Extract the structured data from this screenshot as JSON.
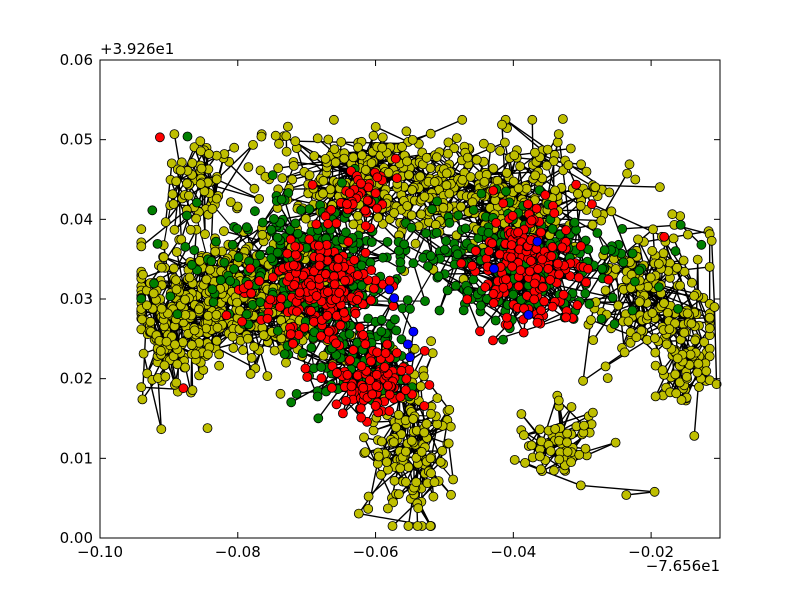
{
  "chart_data": {
    "type": "scatter",
    "title": "",
    "xlabel": "",
    "ylabel": "",
    "xlim": [
      -0.1,
      -0.01
    ],
    "ylim": [
      0.0,
      0.06
    ],
    "x_ticks": [
      -0.1,
      -0.08,
      -0.06,
      -0.04,
      -0.02
    ],
    "x_tick_labels": [
      "−0.10",
      "−0.08",
      "−0.06",
      "−0.04",
      "−0.02"
    ],
    "y_ticks": [
      0.0,
      0.01,
      0.02,
      0.03,
      0.04,
      0.05,
      0.06
    ],
    "y_tick_labels": [
      "0.00",
      "0.01",
      "0.02",
      "0.03",
      "0.04",
      "0.05",
      "0.06"
    ],
    "x_offset_label": "−7.656e1",
    "y_offset_label": "+3.926e1",
    "grid": false,
    "legend": false,
    "edge_color": "#000000",
    "series": [
      {
        "color": "#bfbf00",
        "clusters": [
          {
            "cx": -0.08,
            "cy": 0.03,
            "sx": 0.01,
            "sy": 0.006,
            "n": 420
          },
          {
            "cx": -0.06,
            "cy": 0.045,
            "sx": 0.012,
            "sy": 0.004,
            "n": 260
          },
          {
            "cx": -0.04,
            "cy": 0.043,
            "sx": 0.01,
            "sy": 0.005,
            "n": 240
          },
          {
            "cx": -0.02,
            "cy": 0.03,
            "sx": 0.006,
            "sy": 0.006,
            "n": 150
          },
          {
            "cx": -0.055,
            "cy": 0.012,
            "sx": 0.004,
            "sy": 0.007,
            "n": 140
          },
          {
            "cx": -0.033,
            "cy": 0.012,
            "sx": 0.004,
            "sy": 0.003,
            "n": 60
          },
          {
            "cx": -0.09,
            "cy": 0.025,
            "sx": 0.003,
            "sy": 0.005,
            "n": 90
          },
          {
            "cx": -0.015,
            "cy": 0.022,
            "sx": 0.003,
            "sy": 0.004,
            "n": 70
          },
          {
            "cx": -0.085,
            "cy": 0.045,
            "sx": 0.004,
            "sy": 0.004,
            "n": 60
          }
        ],
        "sparse_points": [
          [
            -0.0892,
            0.0507
          ],
          [
            -0.0745,
            0.0505
          ],
          [
            -0.0328,
            0.0526
          ],
          [
            -0.0223,
            0.045
          ],
          [
            -0.0844,
            0.0138
          ],
          [
            -0.0105,
            0.0193
          ],
          [
            -0.0108,
            0.029
          ],
          [
            -0.0112,
            0.0373
          ],
          [
            -0.0236,
            0.0054
          ],
          [
            -0.0195,
            0.0058
          ],
          [
            -0.0302,
            0.0066
          ],
          [
            -0.0398,
            0.0098
          ],
          [
            -0.0539,
            0.0015
          ],
          [
            -0.0541,
            0.007
          ],
          [
            -0.087,
            0.0327
          ],
          [
            -0.0922,
            0.0307
          ]
        ]
      },
      {
        "color": "#007f00",
        "clusters": [
          {
            "cx": -0.07,
            "cy": 0.034,
            "sx": 0.011,
            "sy": 0.006,
            "n": 260
          },
          {
            "cx": -0.04,
            "cy": 0.034,
            "sx": 0.012,
            "sy": 0.006,
            "n": 230
          },
          {
            "cx": -0.062,
            "cy": 0.022,
            "sx": 0.006,
            "sy": 0.004,
            "n": 100
          }
        ],
        "sparse_points": [
          [
            -0.0127,
            0.0368
          ],
          [
            -0.0157,
            0.0393
          ],
          [
            -0.0242,
            0.0388
          ],
          [
            -0.0873,
            0.0504
          ]
        ]
      },
      {
        "color": "#ff0000",
        "clusters": [
          {
            "cx": -0.068,
            "cy": 0.031,
            "sx": 0.006,
            "sy": 0.004,
            "n": 200
          },
          {
            "cx": -0.038,
            "cy": 0.034,
            "sx": 0.005,
            "sy": 0.005,
            "n": 170
          },
          {
            "cx": -0.06,
            "cy": 0.02,
            "sx": 0.004,
            "sy": 0.003,
            "n": 110
          },
          {
            "cx": -0.062,
            "cy": 0.043,
            "sx": 0.003,
            "sy": 0.003,
            "n": 40
          }
        ],
        "sparse_points": [
          [
            -0.0879,
            0.0188
          ],
          [
            -0.0913,
            0.0503
          ],
          [
            -0.0181,
            0.0378
          ],
          [
            -0.0286,
            0.0419
          ]
        ]
      },
      {
        "color": "#0000ff",
        "points": [
          [
            -0.0553,
            0.0243
          ],
          [
            -0.055,
            0.0227
          ],
          [
            -0.0545,
            0.0259
          ],
          [
            -0.0573,
            0.0301
          ],
          [
            -0.058,
            0.0312
          ],
          [
            -0.0428,
            0.0338
          ],
          [
            -0.0378,
            0.028
          ],
          [
            -0.0365,
            0.0372
          ]
        ]
      }
    ]
  }
}
